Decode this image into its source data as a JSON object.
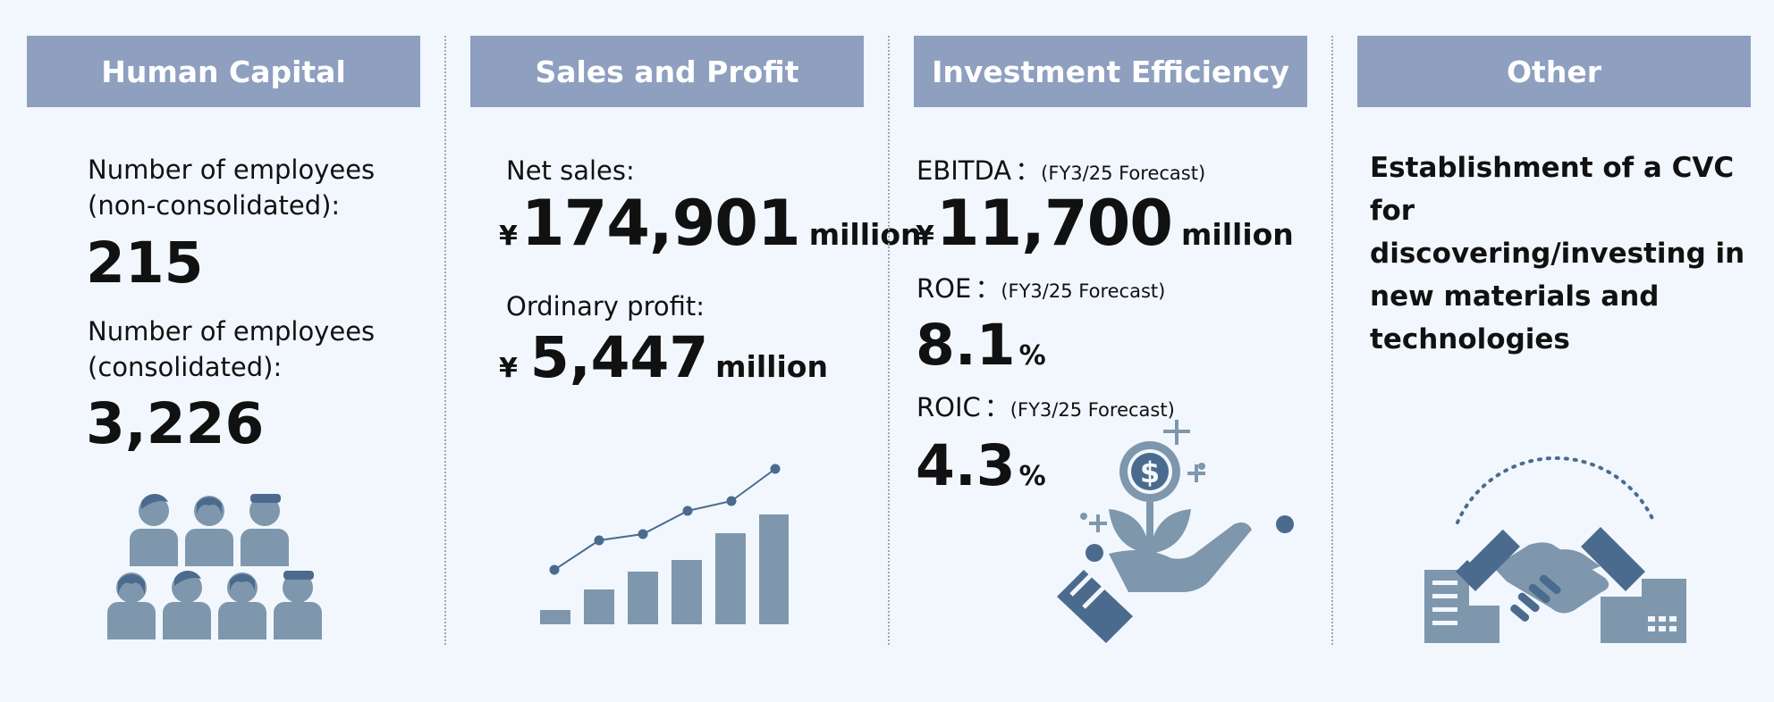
{
  "human_capital": {
    "title": "Human Capital",
    "nonconsolidated_label_1": "Number of employees",
    "nonconsolidated_label_2": "(non-consolidated):",
    "nonconsolidated_value": "215",
    "consolidated_label_1": "Number of employees",
    "consolidated_label_2": "(consolidated):",
    "consolidated_value": "3,226",
    "icon": "people-group-icon"
  },
  "sales_profit": {
    "title": "Sales and Profit",
    "net_sales_label": "Net sales:",
    "net_sales_currency": "¥",
    "net_sales_value": "174,901",
    "net_sales_unit": "million",
    "ordinary_profit_label": "Ordinary profit:",
    "ordinary_profit_currency": "¥",
    "ordinary_profit_value": "5,447",
    "ordinary_profit_unit": "million",
    "icon": "growth-chart-icon"
  },
  "investment": {
    "title": "Investment Efficiency",
    "ebitda_label": "EBITDA",
    "ebitda_separator": "：",
    "ebitda_note": "(FY3/25 Forecast)",
    "ebitda_currency": "¥",
    "ebitda_value": "11,700",
    "ebitda_unit": "million",
    "roe_label": "ROE",
    "roe_separator": "：",
    "roe_note": "(FY3/25 Forecast)",
    "roe_value": "8.1",
    "roe_unit": "%",
    "roic_label": "ROIC",
    "roic_separator": "：",
    "roic_note": "(FY3/25 Forecast)",
    "roic_value": "4.3",
    "roic_unit": "%",
    "icon": "hand-money-plant-icon"
  },
  "other": {
    "title": "Other",
    "description": "Establishment of a CVC for discovering/investing in new materials and technologies",
    "icon": "handshake-buildings-icon"
  },
  "colors": {
    "header_bg": "#8e9fc0",
    "page_bg": "#f1f7fc",
    "icon_light": "#7e97ad",
    "icon_dark": "#4b6b8e"
  }
}
